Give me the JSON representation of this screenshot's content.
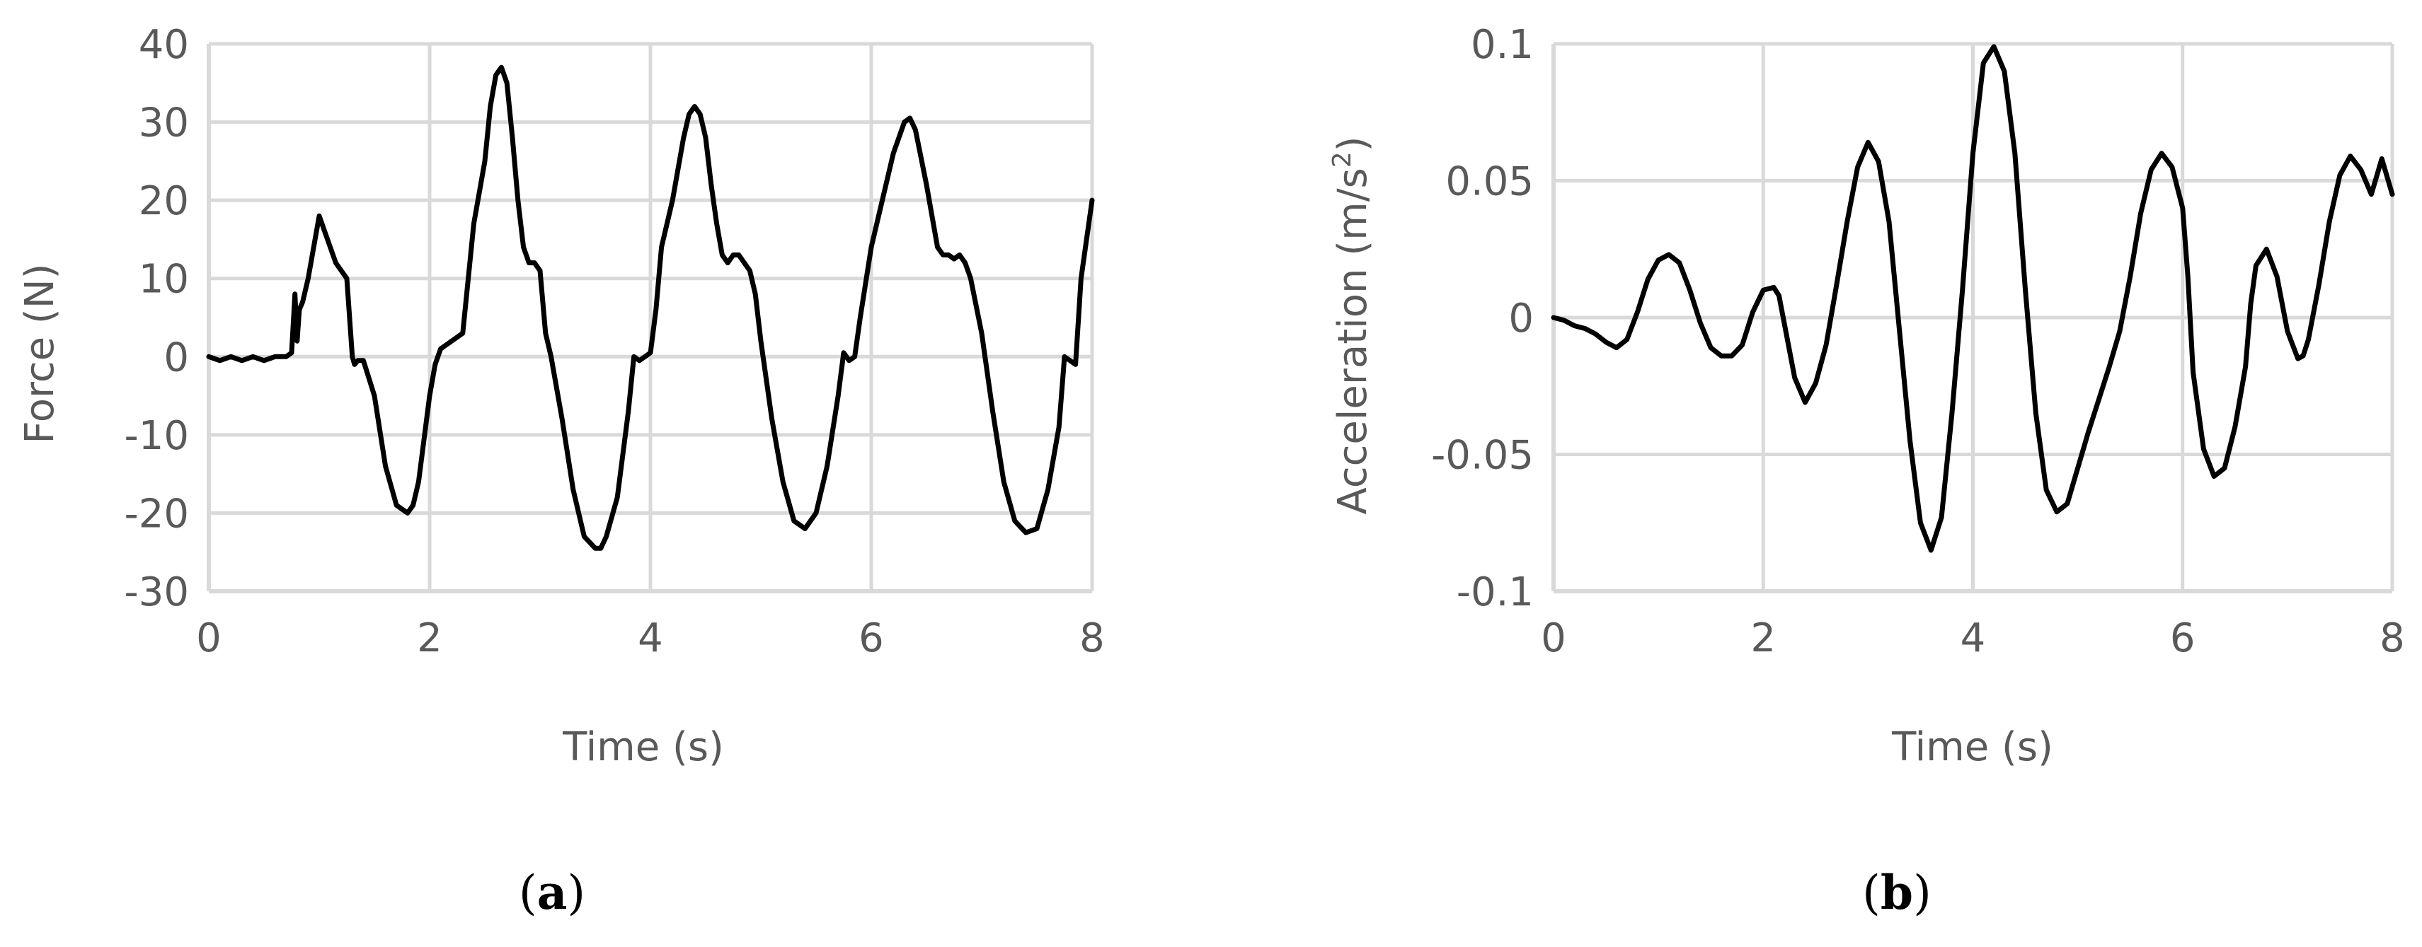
{
  "chart_data": [
    {
      "type": "line",
      "panel_label": "a",
      "xlabel": "Time (s)",
      "ylabel": "Force (N)",
      "xlim": [
        0,
        8
      ],
      "ylim": [
        -30,
        40
      ],
      "xticks": [
        0,
        2,
        4,
        6,
        8
      ],
      "yticks": [
        -30,
        -20,
        -10,
        0,
        10,
        20,
        30,
        40
      ],
      "xtick_labels": [
        "0",
        "2",
        "4",
        "6",
        "8"
      ],
      "ytick_labels": [
        "-30",
        "-20",
        "-10",
        "0",
        "10",
        "20",
        "30",
        "40"
      ],
      "grid": true,
      "line_color": "#000000",
      "grid_color": "#d9d9d9",
      "series": [
        {
          "x": [
            0,
            0.1,
            0.2,
            0.3,
            0.4,
            0.5,
            0.6,
            0.7,
            0.75,
            0.78,
            0.8,
            0.82,
            0.85,
            0.9,
            0.95,
            1.0,
            1.05,
            1.1,
            1.15,
            1.2,
            1.25,
            1.3,
            1.32,
            1.35,
            1.4,
            1.5,
            1.6,
            1.7,
            1.8,
            1.85,
            1.9,
            2.0,
            2.05,
            2.1,
            2.2,
            2.3,
            2.35,
            2.4,
            2.5,
            2.55,
            2.6,
            2.65,
            2.7,
            2.75,
            2.8,
            2.85,
            2.9,
            2.95,
            3.0,
            3.05,
            3.1,
            3.2,
            3.3,
            3.4,
            3.5,
            3.55,
            3.6,
            3.7,
            3.8,
            3.85,
            3.9,
            4.0,
            4.05,
            4.1,
            4.2,
            4.3,
            4.35,
            4.4,
            4.45,
            4.5,
            4.55,
            4.6,
            4.65,
            4.7,
            4.75,
            4.8,
            4.85,
            4.9,
            4.95,
            5.0,
            5.1,
            5.2,
            5.3,
            5.4,
            5.5,
            5.6,
            5.7,
            5.75,
            5.8,
            5.85,
            5.9,
            6.0,
            6.1,
            6.2,
            6.3,
            6.35,
            6.4,
            6.5,
            6.55,
            6.6,
            6.65,
            6.7,
            6.75,
            6.8,
            6.85,
            6.9,
            7.0,
            7.1,
            7.2,
            7.3,
            7.4,
            7.5,
            7.6,
            7.7,
            7.75,
            7.8,
            7.85,
            7.9,
            8.0
          ],
          "y": [
            0,
            -0.5,
            0,
            -0.5,
            0,
            -0.5,
            0,
            0,
            0.5,
            8,
            2,
            6,
            7,
            10,
            14,
            18,
            16,
            14,
            12,
            11,
            10,
            0,
            -1,
            -0.5,
            -0.5,
            -5,
            -14,
            -19,
            -20,
            -19,
            -16,
            -5,
            -1,
            1,
            2,
            3,
            10,
            17,
            25,
            32,
            36,
            37,
            35,
            28,
            20,
            14,
            12,
            12,
            11,
            3,
            0,
            -8,
            -17,
            -23,
            -24.5,
            -24.5,
            -23,
            -18,
            -7,
            0,
            -0.5,
            0.5,
            6,
            14,
            20,
            28,
            31,
            32,
            31,
            28,
            22,
            17,
            13,
            12,
            13,
            13,
            12,
            11,
            8,
            2,
            -8,
            -16,
            -21,
            -22,
            -20,
            -14,
            -5,
            0.5,
            -0.5,
            0,
            5,
            14,
            20,
            26,
            30,
            30.5,
            29,
            22,
            18,
            14,
            13,
            13,
            12.5,
            13,
            12,
            10,
            3,
            -7,
            -16,
            -21,
            -22.5,
            -22,
            -17,
            -9,
            0,
            -0.5,
            -1,
            10,
            20
          ]
        }
      ]
    },
    {
      "type": "line",
      "panel_label": "b",
      "xlabel": "Time (s)",
      "ylabel_main": "Acceleration (m/s",
      "ylabel_sup": "2",
      "ylabel_tail": ")",
      "xlim": [
        0,
        8
      ],
      "ylim": [
        -0.1,
        0.1
      ],
      "xticks": [
        0,
        2,
        4,
        6,
        8
      ],
      "yticks": [
        -0.1,
        -0.05,
        0,
        0.05,
        0.1
      ],
      "xtick_labels": [
        "0",
        "2",
        "4",
        "6",
        "8"
      ],
      "ytick_labels": [
        "-0.1",
        "-0.05",
        "0",
        "0.05",
        "0.1"
      ],
      "grid": true,
      "line_color": "#000000",
      "grid_color": "#d9d9d9",
      "series": [
        {
          "x": [
            0,
            0.1,
            0.2,
            0.3,
            0.4,
            0.5,
            0.6,
            0.7,
            0.8,
            0.9,
            1.0,
            1.1,
            1.2,
            1.3,
            1.4,
            1.5,
            1.6,
            1.7,
            1.8,
            1.9,
            2.0,
            2.1,
            2.15,
            2.2,
            2.3,
            2.4,
            2.5,
            2.6,
            2.7,
            2.8,
            2.9,
            3.0,
            3.1,
            3.2,
            3.25,
            3.3,
            3.4,
            3.5,
            3.6,
            3.7,
            3.8,
            3.9,
            4.0,
            4.1,
            4.2,
            4.3,
            4.4,
            4.45,
            4.5,
            4.6,
            4.7,
            4.8,
            4.9,
            5.0,
            5.1,
            5.2,
            5.3,
            5.4,
            5.5,
            5.6,
            5.7,
            5.8,
            5.9,
            6.0,
            6.05,
            6.1,
            6.2,
            6.3,
            6.4,
            6.5,
            6.6,
            6.65,
            6.7,
            6.8,
            6.9,
            7.0,
            7.1,
            7.15,
            7.2,
            7.3,
            7.4,
            7.5,
            7.6,
            7.7,
            7.8,
            7.9,
            8.0
          ],
          "y": [
            0,
            -0.001,
            -0.003,
            -0.004,
            -0.006,
            -0.009,
            -0.011,
            -0.008,
            0.002,
            0.014,
            0.021,
            0.023,
            0.02,
            0.01,
            -0.002,
            -0.011,
            -0.014,
            -0.014,
            -0.01,
            0.002,
            0.01,
            0.011,
            0.008,
            -0.002,
            -0.022,
            -0.031,
            -0.024,
            -0.01,
            0.012,
            0.035,
            0.055,
            0.064,
            0.057,
            0.035,
            0.015,
            -0.005,
            -0.045,
            -0.075,
            -0.085,
            -0.073,
            -0.035,
            0.01,
            0.06,
            0.093,
            0.099,
            0.09,
            0.06,
            0.035,
            0.01,
            -0.035,
            -0.063,
            -0.071,
            -0.068,
            -0.055,
            -0.042,
            -0.03,
            -0.018,
            -0.005,
            0.015,
            0.038,
            0.054,
            0.06,
            0.055,
            0.04,
            0.015,
            -0.02,
            -0.048,
            -0.058,
            -0.055,
            -0.04,
            -0.018,
            0.005,
            0.019,
            0.025,
            0.015,
            -0.005,
            -0.015,
            -0.014,
            -0.008,
            0.012,
            0.035,
            0.052,
            0.059,
            0.054,
            0.045,
            0.058,
            0.045
          ]
        }
      ]
    }
  ]
}
